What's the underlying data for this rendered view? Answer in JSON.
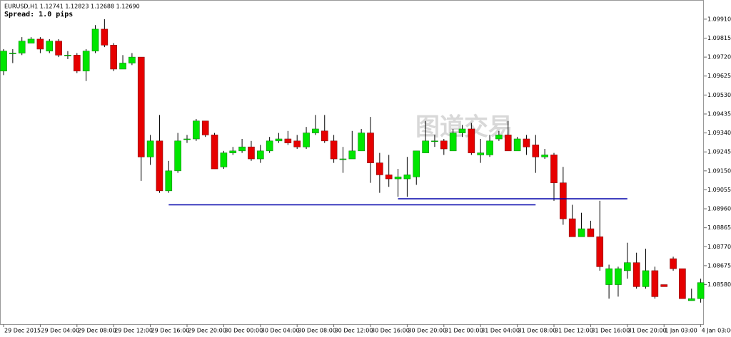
{
  "chart_data": {
    "type": "candlestick",
    "title": "EURUSD,H1  1.12741 1.12823 1.12688 1.12690",
    "subtitle": "Spread: 1.0 pips",
    "watermark": "图道交易",
    "categories": [
      "29 Dec 2015",
      null,
      null,
      null,
      "29 Dec 04:00",
      null,
      null,
      null,
      "29 Dec 08:00",
      null,
      null,
      null,
      "29 Dec 12:00",
      null,
      null,
      null,
      "29 Dec 16:00",
      null,
      null,
      null,
      "29 Dec 20:00",
      null,
      null,
      null,
      "30 Dec 00:00",
      null,
      null,
      null,
      "30 Dec 04:00",
      null,
      null,
      null,
      "30 Dec 08:00",
      null,
      null,
      null,
      "30 Dec 12:00",
      null,
      null,
      null,
      "30 Dec 16:00",
      null,
      null,
      null,
      "30 Dec 20:00",
      null,
      null,
      null,
      "31 Dec 00:00",
      null,
      null,
      null,
      "31 Dec 04:00",
      null,
      null,
      null,
      "31 Dec 08:00",
      null,
      null,
      null,
      "31 Dec 12:00",
      null,
      null,
      null,
      "31 Dec 16:00",
      null,
      null,
      null,
      "31 Dec 20:00",
      null,
      null,
      null,
      "1 Jan 03:00",
      null,
      null,
      null,
      "4 Jan 03:00"
    ],
    "open": [
      1.0965,
      1.0974,
      1.0974,
      1.0979,
      1.0981,
      1.0975,
      1.098,
      1.0973,
      1.0973,
      1.0965,
      1.0975,
      1.0986,
      1.0978,
      1.0966,
      1.0969,
      1.0972,
      1.0922,
      1.093,
      1.0905,
      1.0915,
      1.0931,
      1.0931,
      1.094,
      1.0933,
      1.0917,
      1.0924,
      1.0925,
      1.0927,
      1.0921,
      1.0925,
      1.093,
      1.0931,
      1.093,
      1.0927,
      1.0934,
      1.0935,
      1.093,
      1.0921,
      1.0921,
      1.0925,
      1.0934,
      1.0919,
      1.0913,
      1.0911,
      1.0911,
      1.0912,
      1.0924,
      1.093,
      1.093,
      1.0925,
      1.0934,
      1.0936,
      1.0923,
      1.0923,
      1.0931,
      1.0933,
      1.0925,
      1.0931,
      1.0928,
      1.0922,
      1.0923,
      1.0909,
      1.0891,
      1.0882,
      1.0886,
      1.0882,
      1.0858,
      1.0858,
      1.0865,
      1.0869,
      1.0857,
      1.0865,
      1.0858,
      1.0871,
      1.0866,
      1.085,
      1.0851
    ],
    "high": [
      1.0976,
      1.0976,
      1.0982,
      1.0982,
      1.0982,
      1.0981,
      1.0981,
      1.0975,
      1.0974,
      1.0976,
      1.0988,
      1.0991,
      1.0979,
      1.0973,
      1.0974,
      1.0972,
      1.0933,
      1.0943,
      1.092,
      1.0934,
      1.0933,
      1.0941,
      1.094,
      1.0934,
      1.0925,
      1.0927,
      1.0931,
      1.093,
      1.0928,
      1.0932,
      1.0934,
      1.0935,
      1.0933,
      1.0937,
      1.0943,
      1.0943,
      1.0933,
      1.0927,
      1.0935,
      1.0936,
      1.0942,
      1.0924,
      1.0923,
      1.0916,
      1.0922,
      1.0925,
      1.094,
      1.0933,
      1.0931,
      1.0936,
      1.0938,
      1.0939,
      1.0931,
      1.0933,
      1.0935,
      1.094,
      1.0932,
      1.0933,
      1.0933,
      1.0926,
      1.0924,
      1.0917,
      1.0898,
      1.0894,
      1.089,
      1.09,
      1.0868,
      1.0867,
      1.0879,
      1.0874,
      1.0876,
      1.0867,
      1.0858,
      1.0872,
      1.0866,
      1.0856,
      1.0861
    ],
    "low": [
      1.0963,
      1.0969,
      1.0973,
      1.0979,
      1.0974,
      1.0974,
      1.0972,
      1.0971,
      1.0964,
      1.096,
      1.0974,
      1.0977,
      1.0965,
      1.0966,
      1.0968,
      1.091,
      1.0918,
      1.0904,
      1.0904,
      1.0914,
      1.0929,
      1.093,
      1.0932,
      1.0916,
      1.0916,
      1.0923,
      1.0924,
      1.092,
      1.0919,
      1.0924,
      1.0929,
      1.0928,
      1.0926,
      1.0926,
      1.0933,
      1.0929,
      1.0919,
      1.0914,
      1.0921,
      1.0925,
      1.0909,
      1.0904,
      1.0907,
      1.0902,
      1.0902,
      1.0908,
      1.0924,
      1.0927,
      1.0923,
      1.0925,
      1.0932,
      1.0923,
      1.0919,
      1.0922,
      1.093,
      1.0925,
      1.0925,
      1.0923,
      1.0914,
      1.0921,
      1.09,
      1.0888,
      1.0882,
      1.0882,
      1.0882,
      1.0865,
      1.0851,
      1.0852,
      1.0861,
      1.0856,
      1.0856,
      1.0851,
      1.0857,
      1.0865,
      1.0851,
      1.085,
      1.0849
    ],
    "close": [
      1.0975,
      1.0974,
      1.098,
      1.0981,
      1.0976,
      1.098,
      1.0973,
      1.0973,
      1.0965,
      1.0975,
      1.0986,
      1.0978,
      1.0966,
      1.0969,
      1.0972,
      1.0922,
      1.093,
      1.0905,
      1.0915,
      1.093,
      1.0931,
      1.094,
      1.0933,
      1.0916,
      1.0924,
      1.0925,
      1.0927,
      1.0921,
      1.0925,
      1.093,
      1.0931,
      1.0929,
      1.0927,
      1.0934,
      1.0936,
      1.093,
      1.0921,
      1.0921,
      1.0925,
      1.0934,
      1.0919,
      1.0913,
      1.0911,
      1.0912,
      1.0913,
      1.0925,
      1.093,
      1.093,
      1.0926,
      1.0934,
      1.0936,
      1.0924,
      1.0924,
      1.093,
      1.0933,
      1.0925,
      1.0931,
      1.0927,
      1.0922,
      1.0923,
      1.0909,
      1.0891,
      1.0882,
      1.0886,
      1.0882,
      1.0867,
      1.0866,
      1.0866,
      1.0869,
      1.0857,
      1.0865,
      1.0852,
      1.0857,
      1.0866,
      1.0851,
      1.0851,
      1.0859
    ],
    "up_color": "#00e600",
    "down_color": "#e60000",
    "lines": [
      {
        "value": 1.0898,
        "start": 18,
        "end": 58,
        "color": "#0000aa"
      },
      {
        "value": 1.0901,
        "start": 43,
        "end": 68,
        "color": "#0000aa"
      }
    ],
    "ylim": [
      1.08382,
      1.10006
    ],
    "yticks": [
      {
        "value": 1.0991,
        "label": "1.09910"
      },
      {
        "value": 1.09815,
        "label": "1.09815"
      },
      {
        "value": 1.0972,
        "label": "1.09720"
      },
      {
        "value": 1.09625,
        "label": "1.09625"
      },
      {
        "value": 1.0953,
        "label": "1.09530"
      },
      {
        "value": 1.09435,
        "label": "1.09435"
      },
      {
        "value": 1.0934,
        "label": "1.09340"
      },
      {
        "value": 1.09245,
        "label": "1.09245"
      },
      {
        "value": 1.0915,
        "label": "1.09150"
      },
      {
        "value": 1.09055,
        "label": "1.09055"
      },
      {
        "value": 1.0896,
        "label": "1.08960"
      },
      {
        "value": 1.08865,
        "label": "1.08865"
      },
      {
        "value": 1.0877,
        "label": "1.08770"
      },
      {
        "value": 1.08675,
        "label": "1.08675"
      },
      {
        "value": 1.0858,
        "label": "1.08580"
      }
    ]
  }
}
